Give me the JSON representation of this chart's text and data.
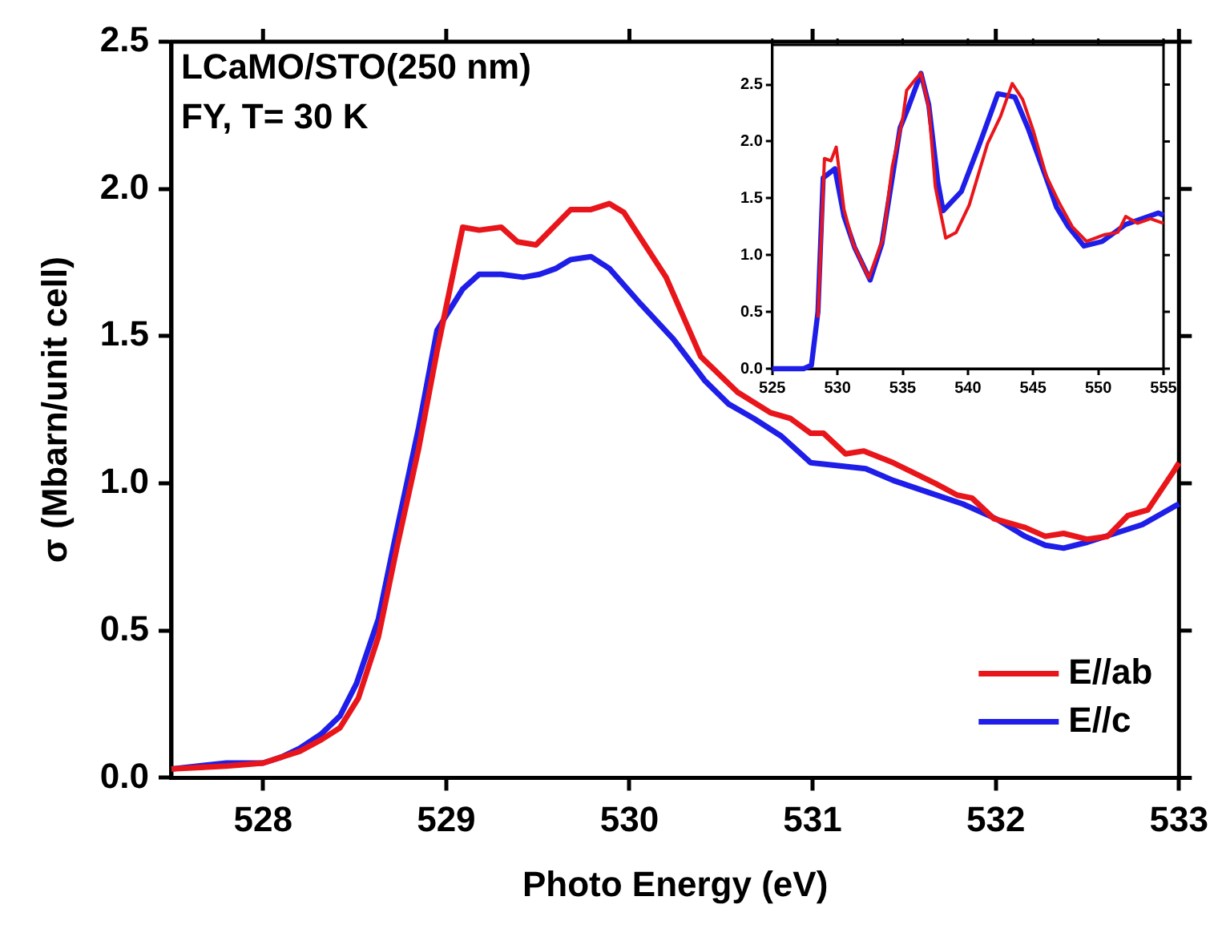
{
  "chart_data": [
    {
      "type": "line",
      "xlabel": "Photo Energy (eV)",
      "ylabel": "σ (Mbarn/unit cell)",
      "annotations": [
        "LCaMO/STO(250 nm)",
        "FY, T= 30 K"
      ],
      "xlim": [
        527.5,
        533
      ],
      "ylim": [
        0,
        2.5
      ],
      "xticks": [
        528,
        529,
        530,
        531,
        532,
        533
      ],
      "yticks": [
        {
          "value": 0,
          "label": "0.0"
        },
        {
          "value": 0.5,
          "label": "0.5"
        },
        {
          "value": 1,
          "label": "1.0"
        },
        {
          "value": 1.5,
          "label": "1.5"
        },
        {
          "value": 2,
          "label": "2.0"
        },
        {
          "value": 2.5,
          "label": "2.5"
        }
      ],
      "legend": "bottom right",
      "series": [
        {
          "name": "E//ab",
          "color": "#e8161b",
          "x": [
            527.5,
            527.8,
            528.0,
            528.1,
            528.2,
            528.32,
            528.42,
            528.52,
            528.63,
            528.73,
            528.85,
            528.95,
            529.09,
            529.18,
            529.3,
            529.39,
            529.49,
            529.68,
            529.79,
            529.89,
            529.97,
            530.2,
            530.39,
            530.59,
            530.77,
            530.88,
            530.99,
            531.06,
            531.18,
            531.28,
            531.44,
            531.67,
            531.79,
            531.87,
            531.99,
            532.16,
            532.27,
            532.37,
            532.5,
            532.61,
            532.72,
            532.83,
            532.97,
            533
          ],
          "values": [
            0.03,
            0.04,
            0.05,
            0.07,
            0.09,
            0.13,
            0.17,
            0.27,
            0.48,
            0.78,
            1.12,
            1.45,
            1.87,
            1.86,
            1.87,
            1.82,
            1.81,
            1.93,
            1.93,
            1.95,
            1.92,
            1.7,
            1.43,
            1.31,
            1.24,
            1.22,
            1.17,
            1.17,
            1.1,
            1.11,
            1.07,
            1.0,
            0.96,
            0.95,
            0.88,
            0.85,
            0.82,
            0.83,
            0.81,
            0.82,
            0.89,
            0.91,
            1.04,
            1.07
          ]
        },
        {
          "name": "E//c",
          "color": "#1e1ee8",
          "x": [
            527.5,
            527.8,
            528.0,
            528.1,
            528.2,
            528.32,
            528.42,
            528.51,
            528.63,
            528.73,
            528.85,
            528.95,
            529.09,
            529.18,
            529.3,
            529.42,
            529.51,
            529.6,
            529.68,
            529.79,
            529.89,
            530.06,
            530.24,
            530.41,
            530.54,
            530.68,
            530.83,
            530.99,
            531.14,
            531.29,
            531.44,
            531.63,
            531.82,
            532.0,
            532.16,
            532.27,
            532.37,
            532.5,
            532.65,
            532.8,
            532.97,
            533
          ],
          "values": [
            0.03,
            0.05,
            0.05,
            0.07,
            0.1,
            0.15,
            0.21,
            0.32,
            0.54,
            0.84,
            1.19,
            1.52,
            1.66,
            1.71,
            1.71,
            1.7,
            1.71,
            1.73,
            1.76,
            1.77,
            1.73,
            1.61,
            1.49,
            1.35,
            1.27,
            1.22,
            1.16,
            1.07,
            1.06,
            1.05,
            1.01,
            0.97,
            0.93,
            0.88,
            0.82,
            0.79,
            0.78,
            0.8,
            0.83,
            0.86,
            0.92,
            0.93
          ]
        }
      ]
    },
    {
      "type": "line",
      "xlim": [
        525,
        555
      ],
      "ylim": [
        0,
        2.85
      ],
      "xticks": [
        525,
        530,
        535,
        540,
        545,
        550,
        555
      ],
      "yticks": [
        {
          "value": 0,
          "label": "0.0"
        },
        {
          "value": 0.5,
          "label": "0.5"
        },
        {
          "value": 1,
          "label": "1.0"
        },
        {
          "value": 1.5,
          "label": "1.5"
        },
        {
          "value": 2,
          "label": "2.0"
        },
        {
          "value": 2.5,
          "label": "2.5"
        }
      ],
      "series": [
        {
          "color": "#e8161b",
          "x": [
            528.5,
            529,
            529.5,
            529.9,
            530.5,
            531.2,
            532.4,
            533.5,
            534.2,
            535,
            535.3,
            536,
            536.4,
            537,
            537.5,
            538.3,
            539.1,
            540.1,
            541.5,
            542.5,
            543.4,
            544.2,
            545,
            546,
            547,
            548,
            549.1,
            550.5,
            551.5,
            552.1,
            553,
            554,
            555
          ],
          "values": [
            0.45,
            1.85,
            1.83,
            1.95,
            1.4,
            1.1,
            0.8,
            1.15,
            1.78,
            2.2,
            2.45,
            2.55,
            2.6,
            2.3,
            1.6,
            1.15,
            1.2,
            1.44,
            1.98,
            2.22,
            2.51,
            2.37,
            2.1,
            1.7,
            1.46,
            1.25,
            1.12,
            1.18,
            1.2,
            1.34,
            1.28,
            1.32,
            1.28
          ]
        },
        {
          "color": "#1e1ee8",
          "x": [
            525,
            527.4,
            528,
            528.5,
            528.9,
            529.8,
            530.5,
            531.3,
            532.5,
            533.4,
            534.2,
            534.8,
            535.4,
            536.4,
            537,
            537.7,
            538.1,
            539.5,
            540.9,
            542.3,
            543.6,
            544.6,
            546,
            546.8,
            547.7,
            548.9,
            550.3,
            552.1,
            554.6,
            555
          ],
          "values": [
            0,
            0,
            0.03,
            0.5,
            1.68,
            1.76,
            1.34,
            1.07,
            0.78,
            1.1,
            1.68,
            2.12,
            2.29,
            2.6,
            2.32,
            1.64,
            1.39,
            1.56,
            1.98,
            2.42,
            2.39,
            2.12,
            1.68,
            1.42,
            1.25,
            1.08,
            1.12,
            1.27,
            1.37,
            1.35
          ]
        }
      ]
    }
  ]
}
